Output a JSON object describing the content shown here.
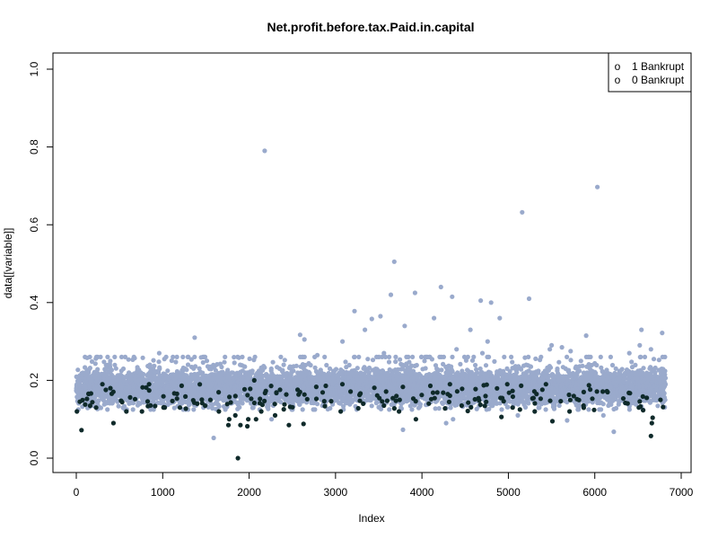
{
  "chart_data": {
    "type": "scatter",
    "title": "Net.profit.before.tax.Paid.in.capital",
    "xlabel": "Index",
    "ylabel": "data[[variable]]",
    "xlim": [
      0,
      7000
    ],
    "ylim": [
      0,
      1.0
    ],
    "x_ticks": [
      "0",
      "1000",
      "2000",
      "3000",
      "4000",
      "5000",
      "6000",
      "7000"
    ],
    "y_ticks": [
      "0.0",
      "0.2",
      "0.4",
      "0.6",
      "0.8",
      "1.0"
    ],
    "grid": false,
    "legend": {
      "placement": "top-right",
      "entries": [
        {
          "symbol": "o",
          "label": "1 Bankrupt"
        },
        {
          "symbol": "o",
          "label": "0 Bankrupt"
        }
      ]
    },
    "n_points": 6819,
    "series": [
      {
        "key": "not-bankrupt",
        "color": "#9AAACC",
        "band_mean": 0.18,
        "band_spread": 0.03,
        "points": [
          [
            2180,
            0.79
          ],
          [
            6030,
            0.697
          ],
          [
            5160,
            0.632
          ],
          [
            3680,
            0.505
          ],
          [
            4220,
            0.44
          ],
          [
            3920,
            0.425
          ],
          [
            3640,
            0.42
          ],
          [
            5240,
            0.41
          ],
          [
            4350,
            0.415
          ],
          [
            4800,
            0.4
          ],
          [
            4680,
            0.405
          ],
          [
            3220,
            0.378
          ],
          [
            4140,
            0.36
          ],
          [
            3420,
            0.358
          ],
          [
            3520,
            0.365
          ],
          [
            4900,
            0.36
          ],
          [
            3800,
            0.34
          ],
          [
            4560,
            0.33
          ],
          [
            3340,
            0.33
          ],
          [
            6540,
            0.33
          ],
          [
            6780,
            0.322
          ],
          [
            5900,
            0.315
          ],
          [
            2590,
            0.317
          ],
          [
            1370,
            0.31
          ],
          [
            2640,
            0.305
          ],
          [
            3080,
            0.3
          ],
          [
            4760,
            0.3
          ],
          [
            5500,
            0.29
          ],
          [
            6520,
            0.29
          ],
          [
            4400,
            0.28
          ],
          [
            5620,
            0.285
          ],
          [
            5720,
            0.275
          ],
          [
            3560,
            0.27
          ],
          [
            960,
            0.27
          ],
          [
            770,
            0.258
          ],
          [
            1020,
            0.255
          ],
          [
            1490,
            0.26
          ],
          [
            4700,
            0.27
          ],
          [
            2790,
            0.265
          ],
          [
            5480,
            0.28
          ],
          [
            6650,
            0.28
          ],
          [
            6400,
            0.27
          ],
          [
            4030,
            0.25
          ],
          [
            1830,
            0.245
          ],
          [
            2400,
            0.24
          ],
          [
            5840,
            0.25
          ],
          [
            1590,
            0.052
          ],
          [
            6220,
            0.068
          ],
          [
            3780,
            0.073
          ],
          [
            4280,
            0.09
          ],
          [
            4360,
            0.1
          ],
          [
            5110,
            0.11
          ],
          [
            5680,
            0.097
          ],
          [
            6100,
            0.11
          ],
          [
            2260,
            0.1
          ]
        ]
      },
      {
        "key": "bankrupt",
        "color": "#0F2A2A",
        "band_mean": 0.155,
        "band_spread": 0.018,
        "points": [
          [
            1870,
            0.0
          ],
          [
            60,
            0.072
          ],
          [
            430,
            0.09
          ],
          [
            1760,
            0.085
          ],
          [
            1770,
            0.1
          ],
          [
            1840,
            0.11
          ],
          [
            1900,
            0.085
          ],
          [
            1980,
            0.082
          ],
          [
            1990,
            0.1
          ],
          [
            2080,
            0.1
          ],
          [
            2300,
            0.11
          ],
          [
            2460,
            0.085
          ],
          [
            2630,
            0.088
          ],
          [
            3930,
            0.1
          ],
          [
            4920,
            0.106
          ],
          [
            5510,
            0.095
          ],
          [
            6650,
            0.057
          ],
          [
            6660,
            0.09
          ],
          [
            6670,
            0.104
          ],
          [
            230,
            0.13
          ],
          [
            580,
            0.12
          ],
          [
            1010,
            0.13
          ],
          [
            1200,
            0.13
          ],
          [
            1400,
            0.14
          ],
          [
            1650,
            0.12
          ],
          [
            2140,
            0.12
          ],
          [
            3060,
            0.12
          ],
          [
            3320,
            0.14
          ],
          [
            3560,
            0.135
          ],
          [
            4460,
            0.135
          ],
          [
            5050,
            0.13
          ],
          [
            5870,
            0.135
          ],
          [
            6510,
            0.13
          ],
          [
            6760,
            0.15
          ],
          [
            40,
            0.145
          ],
          [
            2060,
            0.2
          ]
        ]
      }
    ]
  }
}
